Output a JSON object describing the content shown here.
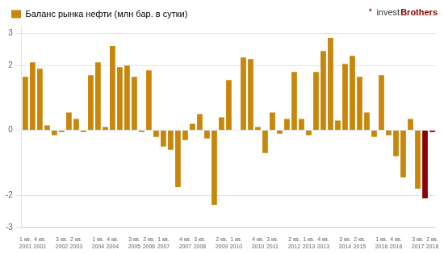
{
  "chart_data": {
    "type": "bar",
    "categories": [
      "1 кв.\n2001",
      null,
      "4 кв.\n2001",
      null,
      null,
      "3 кв.\n2002",
      null,
      "2 кв.\n2003",
      null,
      null,
      "1 кв.\n2004",
      null,
      "4 кв.\n2004",
      null,
      null,
      "3 кв.\n2005",
      null,
      "2 кв.\n2006",
      null,
      "1 кв.\n2007",
      null,
      null,
      "4 кв.\n2007",
      null,
      "3 кв.\n2008",
      null,
      null,
      "2 кв.\n2009",
      null,
      "1 кв.\n2010",
      null,
      null,
      "4 кв.\n2010",
      null,
      "3 кв.\n2011",
      null,
      null,
      "2 кв.\n2012",
      null,
      "1 кв.\n2013",
      null,
      "4 кв.\n2013",
      null,
      null,
      "3 кв.\n2014",
      null,
      "2 кв.\n2015",
      null,
      null,
      "1 кв.\n2016",
      null,
      "4 кв.\n2016",
      null,
      null,
      "3 кв.\n2017",
      null,
      "2 кв.\n2018"
    ],
    "series": [
      {
        "name": "Баланс рынка нефти (млн бар. в сутки)",
        "color": "#C8860A",
        "colors": [
          "#C8860A",
          "#C8860A",
          "#C8860A",
          "#C8860A",
          "#C8860A",
          "#C8860A",
          "#C8860A",
          "#C8860A",
          "#C8860A",
          "#C8860A",
          "#C8860A",
          "#C8860A",
          "#C8860A",
          "#C8860A",
          "#C8860A",
          "#C8860A",
          "#C8860A",
          "#C8860A",
          "#C8860A",
          "#C8860A",
          "#C8860A",
          "#C8860A",
          "#C8860A",
          "#C8860A",
          "#C8860A",
          "#C8860A",
          "#C8860A",
          "#C8860A",
          "#C8860A",
          "#C8860A",
          "#C8860A",
          "#C8860A",
          "#C8860A",
          "#C8860A",
          "#C8860A",
          "#C8860A",
          "#C8860A",
          "#C8860A",
          "#C8860A",
          "#C8860A",
          "#C8860A",
          "#C8860A",
          "#C8860A",
          "#C8860A",
          "#C8860A",
          "#C8860A",
          "#C8860A",
          "#C8860A",
          "#C8860A",
          "#C8860A",
          "#C8860A",
          "#C8860A",
          "#C8860A",
          "#C8860A",
          "#C8860A",
          "#8B0000",
          "#8B0000"
        ],
        "values": [
          1.65,
          2.1,
          1.9,
          0.15,
          -0.15,
          -0.05,
          0.55,
          0.35,
          -0.05,
          1.7,
          2.1,
          0.1,
          2.6,
          1.95,
          2.0,
          1.65,
          -0.05,
          1.85,
          -0.2,
          -0.5,
          -0.6,
          -1.75,
          -0.3,
          0.2,
          0.5,
          -0.25,
          -2.3,
          0.4,
          1.55,
          0.0,
          2.25,
          2.2,
          0.1,
          -0.7,
          0.55,
          -0.1,
          0.35,
          1.8,
          0.35,
          -0.15,
          1.8,
          2.45,
          2.85,
          0.3,
          2.05,
          2.3,
          1.65,
          0.55,
          -0.2,
          1.7,
          -0.15,
          -0.8,
          -1.45,
          0.35,
          -1.8,
          -2.1,
          -0.05
        ]
      }
    ],
    "ylim": [
      -3,
      3.2
    ],
    "yticks": [
      -3,
      -2,
      0,
      2,
      3
    ],
    "grid": true,
    "legend": "upper left",
    "annotations": [
      {
        "text": "ᐩ",
        "color": "#8B0000"
      },
      {
        "text": "invest",
        "color": "#333333"
      },
      {
        "text": "Brothers",
        "color": "#8B0000"
      }
    ]
  }
}
